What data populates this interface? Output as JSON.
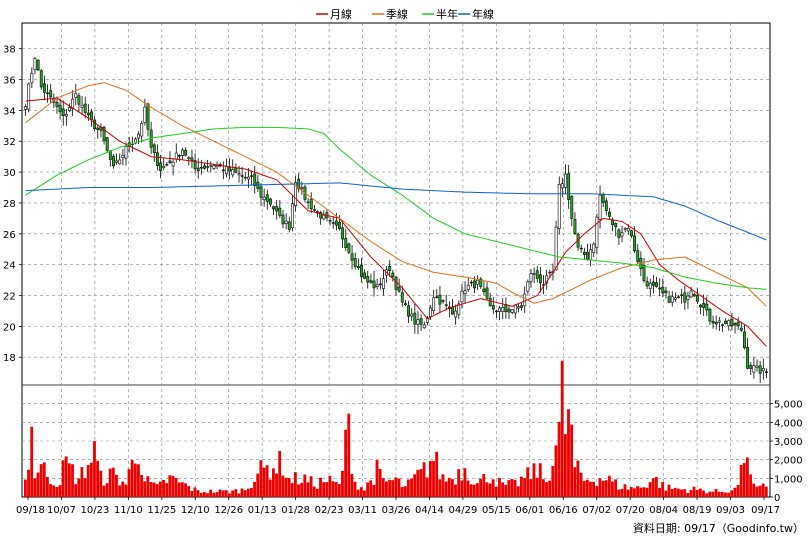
{
  "chart_data": {
    "type": "candlestick",
    "legend": [
      {
        "name": "月線",
        "color": "#cc0000"
      },
      {
        "name": "季線",
        "color": "#e07020"
      },
      {
        "name": "半年",
        "color": "#22cc22"
      },
      {
        "name": "年線",
        "color": "#1060cc"
      }
    ],
    "price_axis": {
      "ticks": [
        18,
        20,
        22,
        24,
        26,
        28,
        30,
        32,
        34,
        36,
        38
      ],
      "range": [
        16.2,
        39.6
      ],
      "side": "left"
    },
    "volume_axis": {
      "ticks": [
        "0",
        "1,000",
        "2,000",
        "3,000",
        "4,000",
        "5,000"
      ],
      "max": 6000,
      "side": "right"
    },
    "x_labels": [
      "09/18",
      "10/07",
      "10/23",
      "11/10",
      "11/25",
      "12/10",
      "12/26",
      "01/13",
      "01/28",
      "02/23",
      "03/11",
      "03/26",
      "04/14",
      "04/29",
      "05/15",
      "06/01",
      "06/16",
      "07/02",
      "07/20",
      "08/04",
      "08/19",
      "09/03",
      "09/17"
    ],
    "close_anchors": [
      [
        0,
        34.5
      ],
      [
        3,
        37.5
      ],
      [
        5,
        35.5
      ],
      [
        9,
        34.5
      ],
      [
        12,
        33.5
      ],
      [
        16,
        35
      ],
      [
        20,
        33.5
      ],
      [
        24,
        32.5
      ],
      [
        28,
        30.2
      ],
      [
        32,
        31.5
      ],
      [
        36,
        32.5
      ],
      [
        38,
        34
      ],
      [
        40,
        31.5
      ],
      [
        43,
        30.2
      ],
      [
        47,
        30.8
      ],
      [
        50,
        31.5
      ],
      [
        54,
        30.2
      ],
      [
        60,
        30.5
      ],
      [
        66,
        30
      ],
      [
        72,
        29.5
      ],
      [
        75,
        28.5
      ],
      [
        78,
        28
      ],
      [
        81,
        27
      ],
      [
        84,
        26.5
      ],
      [
        86,
        29.5
      ],
      [
        90,
        28
      ],
      [
        95,
        27
      ],
      [
        100,
        26.2
      ],
      [
        104,
        24.5
      ],
      [
        108,
        23
      ],
      [
        112,
        22.5
      ],
      [
        116,
        23.8
      ],
      [
        120,
        21.5
      ],
      [
        124,
        20.3
      ],
      [
        127,
        20
      ],
      [
        130,
        22
      ],
      [
        133,
        21.5
      ],
      [
        136,
        20.8
      ],
      [
        140,
        22.5
      ],
      [
        144,
        22.8
      ],
      [
        148,
        21.2
      ],
      [
        153,
        21
      ],
      [
        158,
        21.3
      ],
      [
        161,
        23.5
      ],
      [
        165,
        22.8
      ],
      [
        168,
        23.5
      ],
      [
        170,
        29
      ],
      [
        172,
        29.8
      ],
      [
        174,
        27
      ],
      [
        176,
        25
      ],
      [
        179,
        24.5
      ],
      [
        181,
        25.5
      ],
      [
        183,
        28.5
      ],
      [
        186,
        27
      ],
      [
        189,
        26
      ],
      [
        192,
        26.5
      ],
      [
        194,
        25
      ],
      [
        197,
        23
      ],
      [
        200,
        22.5
      ],
      [
        205,
        21.8
      ],
      [
        210,
        21.8
      ],
      [
        212,
        22.5
      ],
      [
        215,
        21.5
      ],
      [
        218,
        20.5
      ],
      [
        220,
        20.3
      ],
      [
        223,
        20.2
      ],
      [
        226,
        20
      ],
      [
        228,
        19.8
      ],
      [
        230,
        17.5
      ],
      [
        233,
        17.2
      ],
      [
        236,
        17
      ]
    ],
    "ma_month": [
      [
        0,
        34.6
      ],
      [
        10,
        34.8
      ],
      [
        20,
        33.5
      ],
      [
        30,
        32
      ],
      [
        40,
        31
      ],
      [
        50,
        30.8
      ],
      [
        60,
        30.5
      ],
      [
        70,
        30.2
      ],
      [
        80,
        29.5
      ],
      [
        90,
        27.5
      ],
      [
        100,
        27
      ],
      [
        110,
        24.5
      ],
      [
        120,
        22.5
      ],
      [
        128,
        20.5
      ],
      [
        135,
        21.2
      ],
      [
        145,
        21.8
      ],
      [
        155,
        21.3
      ],
      [
        163,
        22
      ],
      [
        168,
        23.5
      ],
      [
        172,
        24.8
      ],
      [
        178,
        26
      ],
      [
        184,
        27
      ],
      [
        190,
        26.8
      ],
      [
        196,
        26
      ],
      [
        202,
        24
      ],
      [
        208,
        23
      ],
      [
        215,
        22
      ],
      [
        222,
        21
      ],
      [
        230,
        20
      ],
      [
        236,
        18.7
      ]
    ],
    "ma_quarter": [
      [
        0,
        33.2
      ],
      [
        10,
        34.8
      ],
      [
        20,
        35.6
      ],
      [
        25,
        35.8
      ],
      [
        32,
        35.3
      ],
      [
        40,
        34.2
      ],
      [
        50,
        33
      ],
      [
        60,
        32
      ],
      [
        70,
        31
      ],
      [
        80,
        30
      ],
      [
        90,
        28.5
      ],
      [
        100,
        27
      ],
      [
        110,
        25.5
      ],
      [
        120,
        24.2
      ],
      [
        130,
        23.5
      ],
      [
        140,
        23.2
      ],
      [
        150,
        22.8
      ],
      [
        155,
        22.2
      ],
      [
        162,
        21.5
      ],
      [
        168,
        21.8
      ],
      [
        175,
        22.5
      ],
      [
        180,
        23
      ],
      [
        190,
        23.8
      ],
      [
        200,
        24.3
      ],
      [
        210,
        24.5
      ],
      [
        220,
        23.5
      ],
      [
        230,
        22.5
      ],
      [
        236,
        21.3
      ]
    ],
    "ma_half": [
      [
        0,
        28.5
      ],
      [
        10,
        29.8
      ],
      [
        20,
        30.8
      ],
      [
        30,
        31.6
      ],
      [
        40,
        32.2
      ],
      [
        50,
        32.5
      ],
      [
        60,
        32.8
      ],
      [
        70,
        32.9
      ],
      [
        80,
        32.9
      ],
      [
        90,
        32.8
      ],
      [
        95,
        32.5
      ],
      [
        100,
        31.5
      ],
      [
        110,
        29.8
      ],
      [
        120,
        28.5
      ],
      [
        130,
        27
      ],
      [
        140,
        26
      ],
      [
        150,
        25.5
      ],
      [
        160,
        25
      ],
      [
        170,
        24.5
      ],
      [
        180,
        24.3
      ],
      [
        190,
        24.1
      ],
      [
        200,
        23.8
      ],
      [
        210,
        23.2
      ],
      [
        220,
        22.8
      ],
      [
        230,
        22.5
      ],
      [
        236,
        22.4
      ]
    ],
    "ma_year": [
      [
        0,
        28.8
      ],
      [
        20,
        29
      ],
      [
        40,
        29
      ],
      [
        60,
        29.1
      ],
      [
        80,
        29.2
      ],
      [
        100,
        29.3
      ],
      [
        120,
        28.9
      ],
      [
        140,
        28.7
      ],
      [
        160,
        28.6
      ],
      [
        180,
        28.6
      ],
      [
        200,
        28.4
      ],
      [
        210,
        27.8
      ],
      [
        220,
        26.9
      ],
      [
        230,
        26.1
      ],
      [
        236,
        25.6
      ]
    ],
    "volume_anchors": [
      [
        0,
        900
      ],
      [
        2,
        3500
      ],
      [
        3,
        1300
      ],
      [
        5,
        1600
      ],
      [
        10,
        700
      ],
      [
        13,
        1800
      ],
      [
        17,
        900
      ],
      [
        22,
        2400
      ],
      [
        24,
        1000
      ],
      [
        28,
        1200
      ],
      [
        32,
        700
      ],
      [
        36,
        2800
      ],
      [
        38,
        900
      ],
      [
        42,
        500
      ],
      [
        46,
        1000
      ],
      [
        50,
        700
      ],
      [
        55,
        300
      ],
      [
        60,
        300
      ],
      [
        66,
        300
      ],
      [
        70,
        400
      ],
      [
        74,
        1300
      ],
      [
        78,
        1600
      ],
      [
        82,
        1800
      ],
      [
        84,
        900
      ],
      [
        88,
        1000
      ],
      [
        92,
        700
      ],
      [
        96,
        900
      ],
      [
        100,
        600
      ],
      [
        103,
        3700
      ],
      [
        105,
        800
      ],
      [
        108,
        400
      ],
      [
        112,
        1400
      ],
      [
        114,
        800
      ],
      [
        118,
        900
      ],
      [
        121,
        500
      ],
      [
        124,
        1000
      ],
      [
        127,
        1400
      ],
      [
        130,
        2100
      ],
      [
        133,
        1000
      ],
      [
        136,
        1000
      ],
      [
        140,
        1600
      ],
      [
        144,
        700
      ],
      [
        148,
        1200
      ],
      [
        152,
        600
      ],
      [
        156,
        700
      ],
      [
        160,
        1100
      ],
      [
        163,
        1500
      ],
      [
        166,
        800
      ],
      [
        168,
        2200
      ],
      [
        170,
        3300
      ],
      [
        171,
        5500
      ],
      [
        172,
        3800
      ],
      [
        173,
        4500
      ],
      [
        175,
        1600
      ],
      [
        178,
        900
      ],
      [
        182,
        1000
      ],
      [
        185,
        1000
      ],
      [
        189,
        600
      ],
      [
        192,
        500
      ],
      [
        196,
        500
      ],
      [
        200,
        1000
      ],
      [
        204,
        500
      ],
      [
        210,
        400
      ],
      [
        214,
        400
      ],
      [
        218,
        300
      ],
      [
        222,
        300
      ],
      [
        226,
        400
      ],
      [
        228,
        1200
      ],
      [
        229,
        2500
      ],
      [
        230,
        2700
      ],
      [
        231,
        900
      ],
      [
        233,
        400
      ],
      [
        236,
        600
      ]
    ]
  },
  "footer": "資料日期: 09/17（Goodinfo.tw）"
}
